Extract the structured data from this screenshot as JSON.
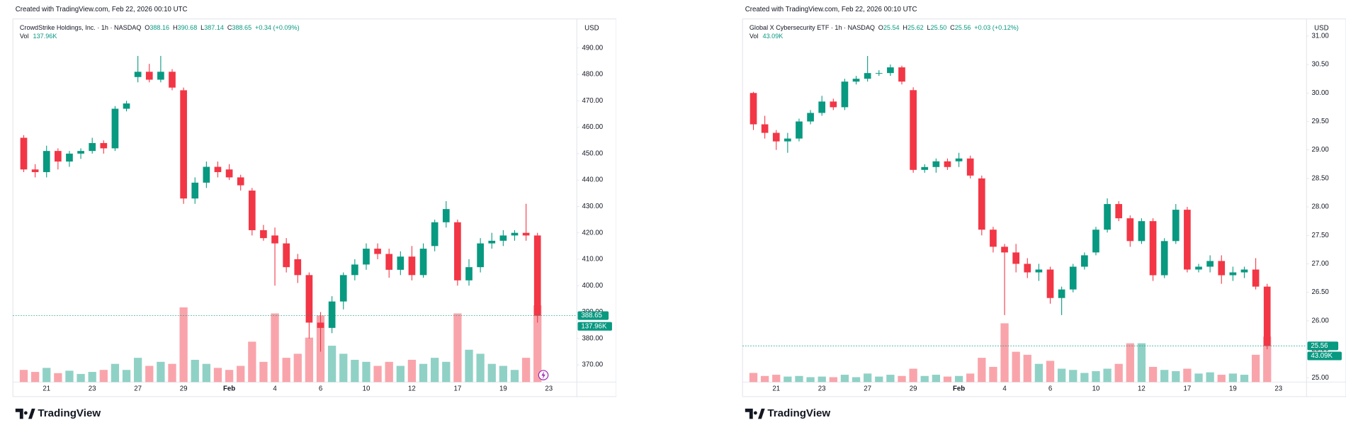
{
  "chart_data": [
    {
      "type": "candlestick",
      "created": "Created with TradingView.com, Feb 22, 2026 00:10 UTC",
      "symbol": "CrowdStrike Holdings, Inc. · 1h · NASDAQ",
      "ohlc": [
        {
          "key": "O",
          "text": "388.16"
        },
        {
          "key": "H",
          "text": "390.68"
        },
        {
          "key": "L",
          "text": "387.14"
        },
        {
          "key": "C",
          "text": "388.65"
        }
      ],
      "change": "+0.34 (+0.09%)",
      "vol_title": "Vol",
      "currency": "USD",
      "logo": "TradingView",
      "up_color": "#089981",
      "down_color": "#f23645",
      "categories": [
        null,
        null,
        "21",
        null,
        null,
        null,
        "23",
        null,
        null,
        null,
        "27",
        null,
        null,
        null,
        "29",
        null,
        null,
        null,
        "Feb",
        null,
        null,
        null,
        "4",
        null,
        null,
        null,
        "6",
        null,
        null,
        null,
        "10",
        null,
        null,
        null,
        "12",
        null,
        null,
        null,
        "17",
        null,
        null,
        null,
        "19",
        null,
        null,
        null,
        "23"
      ],
      "candles": {
        "open": [
          456,
          444,
          443,
          451,
          447,
          450,
          451,
          454,
          452,
          467,
          479,
          481,
          478,
          481,
          474,
          433,
          439,
          445,
          444,
          441,
          436,
          421,
          419,
          416,
          410,
          404,
          386,
          384,
          394,
          404,
          408,
          414,
          412,
          406,
          411,
          404,
          415,
          424,
          424,
          402,
          407,
          416,
          417,
          419,
          420,
          419,
          null
        ],
        "high": [
          457,
          446,
          453,
          452,
          451,
          452,
          456,
          455,
          468,
          470,
          487,
          484,
          487,
          482,
          475,
          441,
          447,
          447,
          446,
          442,
          437,
          423,
          422,
          418,
          412,
          405,
          390,
          396,
          405,
          410,
          416,
          416,
          414,
          413,
          415,
          416,
          425,
          432,
          425,
          410,
          418,
          420,
          421,
          421,
          431,
          420,
          null
        ],
        "low": [
          443,
          441,
          441,
          444,
          445,
          448,
          450,
          450,
          451,
          466,
          477,
          477,
          477,
          474,
          431,
          431,
          437,
          441,
          440,
          436,
          419,
          417,
          400,
          405,
          401,
          380,
          375,
          382,
          391,
          402,
          406,
          410,
          403,
          404,
          402,
          403,
          413,
          422,
          400,
          400,
          405,
          414,
          415,
          417,
          417,
          386,
          null
        ],
        "close": [
          444,
          443,
          451,
          447,
          450,
          451,
          454,
          452,
          467,
          469,
          481,
          478,
          481,
          475,
          433,
          439,
          445,
          443,
          441,
          438,
          421,
          418,
          416,
          407,
          404,
          386,
          384,
          394,
          404,
          408,
          414,
          412,
          406,
          411,
          404,
          414,
          424,
          429,
          402,
          407,
          416,
          417,
          419,
          420,
          419,
          388.65,
          null
        ]
      },
      "volume": [
        30000,
        25000,
        35000,
        22000,
        28000,
        20000,
        25000,
        30000,
        45000,
        30000,
        60000,
        40000,
        50000,
        45000,
        185000,
        55000,
        45000,
        35000,
        30000,
        40000,
        100000,
        50000,
        170000,
        60000,
        70000,
        110000,
        165000,
        90000,
        70000,
        55000,
        50000,
        40000,
        50000,
        40000,
        55000,
        45000,
        60000,
        50000,
        170000,
        80000,
        70000,
        45000,
        40000,
        30000,
        60000,
        190000,
        null
      ],
      "ylim": [
        363.5,
        501
      ],
      "yticks": [
        {
          "value": 370,
          "label": "370.00"
        },
        {
          "value": 380,
          "label": "380.00"
        },
        {
          "value": 390,
          "label": "390.00"
        },
        {
          "value": 400,
          "label": "400.00"
        },
        {
          "value": 410,
          "label": "410.00"
        },
        {
          "value": 420,
          "label": "420.00"
        },
        {
          "value": 430,
          "label": "430.00"
        },
        {
          "value": 440,
          "label": "440.00"
        },
        {
          "value": 450,
          "label": "450.00"
        },
        {
          "value": 460,
          "label": "460.00"
        },
        {
          "value": 470,
          "label": "470.00"
        },
        {
          "value": 480,
          "label": "480.00"
        },
        {
          "value": 490,
          "label": "490.00"
        }
      ],
      "y2lim": [
        0,
        900000
      ],
      "grid": false,
      "last_price": {
        "value": 388.65,
        "label": "388.65"
      },
      "last_volume": {
        "value": 137960,
        "label": "137.96K"
      }
    },
    {
      "type": "candlestick",
      "created": "Created with TradingView.com, Feb 22, 2026 00:10 UTC",
      "symbol": "Global X Cybersecurity ETF · 1h · NASDAQ",
      "ohlc": [
        {
          "key": "O",
          "text": "25.54"
        },
        {
          "key": "H",
          "text": "25.62"
        },
        {
          "key": "L",
          "text": "25.50"
        },
        {
          "key": "C",
          "text": "25.56"
        }
      ],
      "change": "+0.03 (+0.12%)",
      "vol_title": "Vol",
      "currency": "USD",
      "logo": "TradingView",
      "up_color": "#089981",
      "down_color": "#f23645",
      "categories": [
        null,
        null,
        "21",
        null,
        null,
        null,
        "23",
        null,
        null,
        null,
        "27",
        null,
        null,
        null,
        "29",
        null,
        null,
        null,
        "Feb",
        null,
        null,
        null,
        "4",
        null,
        null,
        null,
        "6",
        null,
        null,
        null,
        "10",
        null,
        null,
        null,
        "12",
        null,
        null,
        null,
        "17",
        null,
        null,
        null,
        "19",
        null,
        null,
        null,
        "23"
      ],
      "candles": {
        "open": [
          30.0,
          29.45,
          29.3,
          29.15,
          29.2,
          29.5,
          29.65,
          29.85,
          29.75,
          30.2,
          30.25,
          30.35,
          30.35,
          30.45,
          30.05,
          28.65,
          28.7,
          28.8,
          28.8,
          28.85,
          28.5,
          27.6,
          27.3,
          27.2,
          27.0,
          26.85,
          26.9,
          26.4,
          26.55,
          26.95,
          27.2,
          27.6,
          28.05,
          27.8,
          27.4,
          27.75,
          26.8,
          27.4,
          27.95,
          26.9,
          26.95,
          27.05,
          26.8,
          26.85,
          26.9,
          26.6,
          null
        ],
        "high": [
          30.02,
          29.6,
          29.35,
          29.3,
          29.55,
          29.7,
          29.95,
          29.9,
          30.25,
          30.3,
          30.65,
          30.4,
          30.5,
          30.48,
          30.1,
          28.75,
          28.85,
          28.85,
          28.95,
          28.9,
          28.55,
          27.65,
          27.35,
          27.35,
          27.1,
          27.0,
          26.95,
          26.6,
          27.0,
          27.2,
          27.65,
          28.15,
          28.1,
          27.85,
          27.8,
          27.8,
          27.45,
          28.05,
          28.0,
          27.0,
          27.15,
          27.15,
          26.95,
          26.95,
          27.1,
          26.65,
          null
        ],
        "low": [
          29.35,
          29.2,
          29.0,
          28.95,
          29.15,
          29.45,
          29.6,
          29.7,
          29.7,
          30.15,
          30.2,
          30.3,
          30.3,
          30.15,
          28.6,
          28.6,
          28.6,
          28.65,
          28.7,
          28.5,
          27.5,
          27.2,
          26.1,
          26.85,
          26.75,
          26.7,
          26.3,
          26.1,
          26.5,
          26.9,
          27.15,
          27.55,
          27.75,
          27.3,
          27.35,
          26.7,
          26.75,
          27.35,
          26.85,
          26.85,
          26.85,
          26.65,
          26.7,
          26.75,
          26.55,
          25.5,
          null
        ],
        "close": [
          29.45,
          29.3,
          29.15,
          29.2,
          29.5,
          29.65,
          29.85,
          29.75,
          30.2,
          30.25,
          30.35,
          30.35,
          30.45,
          30.2,
          28.65,
          28.7,
          28.8,
          28.7,
          28.85,
          28.55,
          27.6,
          27.3,
          27.2,
          27.0,
          26.85,
          26.9,
          26.4,
          26.55,
          26.95,
          27.15,
          27.6,
          28.05,
          27.8,
          27.4,
          27.75,
          26.8,
          27.4,
          27.95,
          26.9,
          26.95,
          27.05,
          26.8,
          26.85,
          26.9,
          26.6,
          25.56,
          null
        ]
      },
      "volume": [
        15000,
        10000,
        12000,
        9000,
        10000,
        8000,
        9000,
        8000,
        12000,
        8000,
        14000,
        9000,
        12000,
        10000,
        22000,
        10000,
        12000,
        9000,
        10000,
        14000,
        40000,
        25000,
        97000,
        50000,
        45000,
        30000,
        35000,
        22000,
        20000,
        15000,
        18000,
        22000,
        30000,
        64000,
        64000,
        25000,
        20000,
        18000,
        22000,
        14000,
        16000,
        12000,
        14000,
        12000,
        45000,
        75000,
        null
      ],
      "ylim": [
        24.925,
        31.3
      ],
      "yticks": [
        {
          "value": 25,
          "label": "25.00"
        },
        {
          "value": 25.5,
          "label": "25.50"
        },
        {
          "value": 26,
          "label": "26.00"
        },
        {
          "value": 26.5,
          "label": "26.50"
        },
        {
          "value": 27,
          "label": "27.00"
        },
        {
          "value": 27.5,
          "label": "27.50"
        },
        {
          "value": 28,
          "label": "28.00"
        },
        {
          "value": 28.5,
          "label": "28.50"
        },
        {
          "value": 29,
          "label": "29.00"
        },
        {
          "value": 29.5,
          "label": "29.50"
        },
        {
          "value": 30,
          "label": "30.00"
        },
        {
          "value": 30.5,
          "label": "30.50"
        },
        {
          "value": 31,
          "label": "31.00"
        }
      ],
      "y2lim": [
        0,
        600000
      ],
      "grid": false,
      "last_price": {
        "value": 25.56,
        "label": "25.56"
      },
      "last_volume": {
        "value": 43090,
        "label": "43.09K"
      }
    }
  ]
}
